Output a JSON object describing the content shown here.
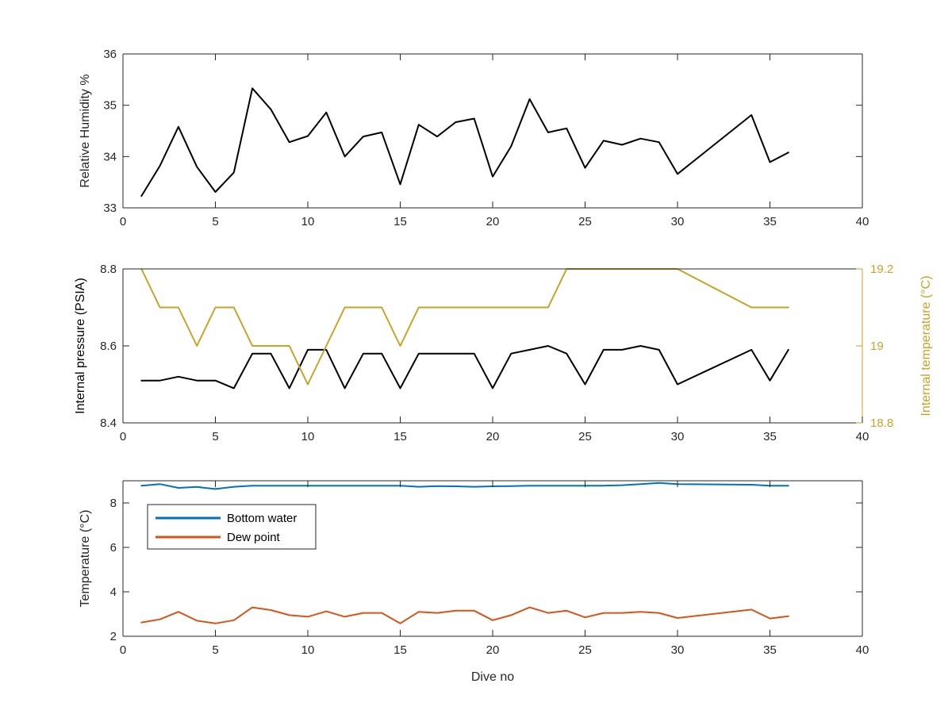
{
  "chart_data": [
    {
      "type": "line",
      "title": "",
      "xlabel": "",
      "ylabel": "Relative Humidity %",
      "xlim": [
        0,
        40
      ],
      "ylim": [
        33,
        36
      ],
      "xticks": [
        0,
        5,
        10,
        15,
        20,
        25,
        30,
        35,
        40
      ],
      "yticks": [
        33,
        34,
        35,
        36
      ],
      "grid": false,
      "series": [
        {
          "color": "#000000",
          "x": [
            1,
            2,
            3,
            4,
            5,
            6,
            7,
            8,
            9,
            10,
            11,
            12,
            13,
            14,
            15,
            16,
            17,
            18,
            19,
            20,
            21,
            22,
            23,
            24,
            25,
            26,
            27,
            28,
            29,
            30,
            34,
            35,
            36
          ],
          "y": [
            33.23,
            33.82,
            34.58,
            33.8,
            33.31,
            33.69,
            35.33,
            34.92,
            34.28,
            34.4,
            34.86,
            34.0,
            34.39,
            34.47,
            33.46,
            34.62,
            34.39,
            34.67,
            34.74,
            33.61,
            34.2,
            35.12,
            34.47,
            34.55,
            33.78,
            34.31,
            34.23,
            34.35,
            34.28,
            33.66,
            34.81,
            33.89,
            34.08
          ]
        }
      ]
    },
    {
      "type": "line",
      "title": "",
      "xlabel": "",
      "ylabel": "Internal pressure (PSIA)",
      "ylabel_right": "Internal temperature (°C)",
      "xlim": [
        0,
        40
      ],
      "ylim": [
        8.4,
        8.8
      ],
      "ylim_right": [
        18.8,
        19.2
      ],
      "xticks": [
        0,
        5,
        10,
        15,
        20,
        25,
        30,
        35,
        40
      ],
      "yticks": [
        8.4,
        8.6,
        8.8
      ],
      "yticks_right": [
        18.8,
        19,
        19.2
      ],
      "grid": false,
      "series": [
        {
          "axis": "left",
          "color": "#000000",
          "x": [
            1,
            2,
            3,
            4,
            5,
            6,
            7,
            8,
            9,
            10,
            11,
            12,
            13,
            14,
            15,
            16,
            17,
            18,
            19,
            20,
            21,
            22,
            23,
            24,
            25,
            26,
            27,
            28,
            29,
            30,
            34,
            35,
            36
          ],
          "y": [
            8.51,
            8.51,
            8.52,
            8.51,
            8.51,
            8.49,
            8.58,
            8.58,
            8.49,
            8.59,
            8.59,
            8.49,
            8.58,
            8.58,
            8.49,
            8.58,
            8.58,
            8.58,
            8.58,
            8.49,
            8.58,
            8.59,
            8.6,
            8.58,
            8.5,
            8.59,
            8.59,
            8.6,
            8.59,
            8.5,
            8.59,
            8.51,
            8.59
          ]
        },
        {
          "axis": "right",
          "color": "#C9A227",
          "x": [
            1,
            2,
            3,
            4,
            5,
            6,
            7,
            8,
            9,
            10,
            11,
            12,
            13,
            14,
            15,
            16,
            17,
            18,
            19,
            20,
            21,
            22,
            23,
            24,
            25,
            26,
            27,
            28,
            29,
            30,
            34,
            35,
            36
          ],
          "y": [
            19.2,
            19.1,
            19.1,
            19.0,
            19.1,
            19.1,
            19.0,
            19.0,
            19.0,
            18.9,
            19.0,
            19.1,
            19.1,
            19.1,
            19.0,
            19.1,
            19.1,
            19.1,
            19.1,
            19.1,
            19.1,
            19.1,
            19.1,
            19.2,
            19.2,
            19.2,
            19.2,
            19.2,
            19.2,
            19.2,
            19.1,
            19.1,
            19.1
          ]
        }
      ]
    },
    {
      "type": "line",
      "title": "",
      "xlabel": "Dive no",
      "ylabel": "Temperature (°C)",
      "xlim": [
        0,
        40
      ],
      "ylim": [
        2,
        9
      ],
      "xticks": [
        0,
        5,
        10,
        15,
        20,
        25,
        30,
        35,
        40
      ],
      "yticks": [
        2,
        4,
        6,
        8
      ],
      "grid": false,
      "legend_position": "top-left",
      "series": [
        {
          "name": "Bottom water",
          "color": "#0072BD",
          "x": [
            1,
            2,
            3,
            4,
            5,
            6,
            7,
            8,
            9,
            10,
            11,
            12,
            13,
            14,
            15,
            16,
            17,
            18,
            19,
            20,
            21,
            22,
            23,
            24,
            25,
            26,
            27,
            28,
            29,
            30,
            34,
            35,
            36
          ],
          "y": [
            8.78,
            8.85,
            8.68,
            8.72,
            8.63,
            8.73,
            8.78,
            8.78,
            8.78,
            8.78,
            8.78,
            8.78,
            8.78,
            8.78,
            8.78,
            8.73,
            8.76,
            8.75,
            8.73,
            8.75,
            8.76,
            8.78,
            8.78,
            8.78,
            8.78,
            8.78,
            8.8,
            8.85,
            8.9,
            8.85,
            8.82,
            8.78,
            8.78
          ]
        },
        {
          "name": "Dew point",
          "color": "#D95319",
          "x": [
            1,
            2,
            3,
            4,
            5,
            6,
            7,
            8,
            9,
            10,
            11,
            12,
            13,
            14,
            15,
            16,
            17,
            18,
            19,
            20,
            21,
            22,
            23,
            24,
            25,
            26,
            27,
            28,
            29,
            30,
            34,
            35,
            36
          ],
          "y": [
            2.62,
            2.76,
            3.1,
            2.7,
            2.58,
            2.72,
            3.3,
            3.18,
            2.95,
            2.88,
            3.12,
            2.88,
            3.05,
            3.05,
            2.58,
            3.1,
            3.05,
            3.15,
            3.15,
            2.72,
            2.95,
            3.3,
            3.05,
            3.15,
            2.85,
            3.05,
            3.05,
            3.1,
            3.05,
            2.82,
            3.2,
            2.8,
            2.9
          ]
        }
      ]
    }
  ]
}
